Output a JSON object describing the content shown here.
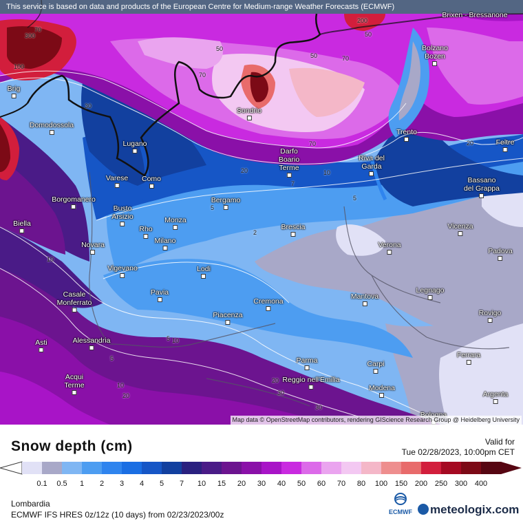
{
  "disclaimer": "This service is based on data and products of the European Centre for Medium-range Weather Forecasts (ECMWF)",
  "attribution": "Map data © OpenStreetMap contributors, rendering GIScience Research Group @ Heidelberg University",
  "legend": {
    "title": "Snow depth (cm)",
    "valid_label": "Valid for",
    "valid_date": "Tue 02/28/2023, 10:00pm CET",
    "ticks": [
      "0.1",
      "0.5",
      "1",
      "2",
      "3",
      "4",
      "5",
      "7",
      "10",
      "15",
      "20",
      "30",
      "40",
      "50",
      "60",
      "70",
      "80",
      "100",
      "150",
      "200",
      "250",
      "300",
      "400"
    ],
    "colors": [
      "#e1e1f6",
      "#a8a8c8",
      "#7fb6f3",
      "#4d9df1",
      "#2f84ee",
      "#1a6ee3",
      "#1656c6",
      "#12409f",
      "#2a207f",
      "#4a1b87",
      "#6c148f",
      "#8a10a8",
      "#a814c7",
      "#c92ae0",
      "#dc6ae9",
      "#eaa4ef",
      "#f3c8f2",
      "#f4b7c8",
      "#ee8e8e",
      "#e86b6b",
      "#d21e3c",
      "#a50a22",
      "#7c0a16",
      "#560612"
    ]
  },
  "region": "Lombardia",
  "model": "ECMWF IFS HRES 0z/12z (10 days) from  02/23/2023/00z",
  "brand": {
    "ecmwf": "ECMWF",
    "meteologix": "meteologix.com"
  },
  "cities": [
    {
      "name": "Brixen - Bressanone"
    },
    {
      "name": "Bolzano Bozen"
    },
    {
      "name": "Brig"
    },
    {
      "name": "Domodossola"
    },
    {
      "name": "Sondrio"
    },
    {
      "name": "Trento"
    },
    {
      "name": "Feltre"
    },
    {
      "name": "Lugano"
    },
    {
      "name": "Darfo Boario Terme"
    },
    {
      "name": "Riva del Garda"
    },
    {
      "name": "Bassano del Grappa"
    },
    {
      "name": "Varese"
    },
    {
      "name": "Como"
    },
    {
      "name": "Borgomanero"
    },
    {
      "name": "Bergamo"
    },
    {
      "name": "Busto Arsizio"
    },
    {
      "name": "Biella"
    },
    {
      "name": "Rho"
    },
    {
      "name": "Monza"
    },
    {
      "name": "Brescia"
    },
    {
      "name": "Vicenza"
    },
    {
      "name": "Milano"
    },
    {
      "name": "Novara"
    },
    {
      "name": "Verona"
    },
    {
      "name": "Padova"
    },
    {
      "name": "Vigevano"
    },
    {
      "name": "Lodi"
    },
    {
      "name": "Legnago"
    },
    {
      "name": "Pavia"
    },
    {
      "name": "Mantova"
    },
    {
      "name": "Casale Monferrato"
    },
    {
      "name": "Cremona"
    },
    {
      "name": "Piacenza"
    },
    {
      "name": "Rovigo"
    },
    {
      "name": "Asti"
    },
    {
      "name": "Alessandria"
    },
    {
      "name": "Parma"
    },
    {
      "name": "Ferrara"
    },
    {
      "name": "Carpi"
    },
    {
      "name": "Acqui Terme"
    },
    {
      "name": "Reggio nell'Emilia"
    },
    {
      "name": "Modena"
    },
    {
      "name": "Argenta"
    },
    {
      "name": "Bologna"
    }
  ],
  "contour_labels": [
    "70",
    "300",
    "100",
    "50",
    "70",
    "30",
    "70",
    "50",
    "20",
    "70",
    "20",
    "10",
    "7",
    "5",
    "5",
    "2",
    "10",
    "5",
    "20",
    "30",
    "10",
    "30",
    "10",
    "20",
    "5",
    "200",
    "50"
  ]
}
